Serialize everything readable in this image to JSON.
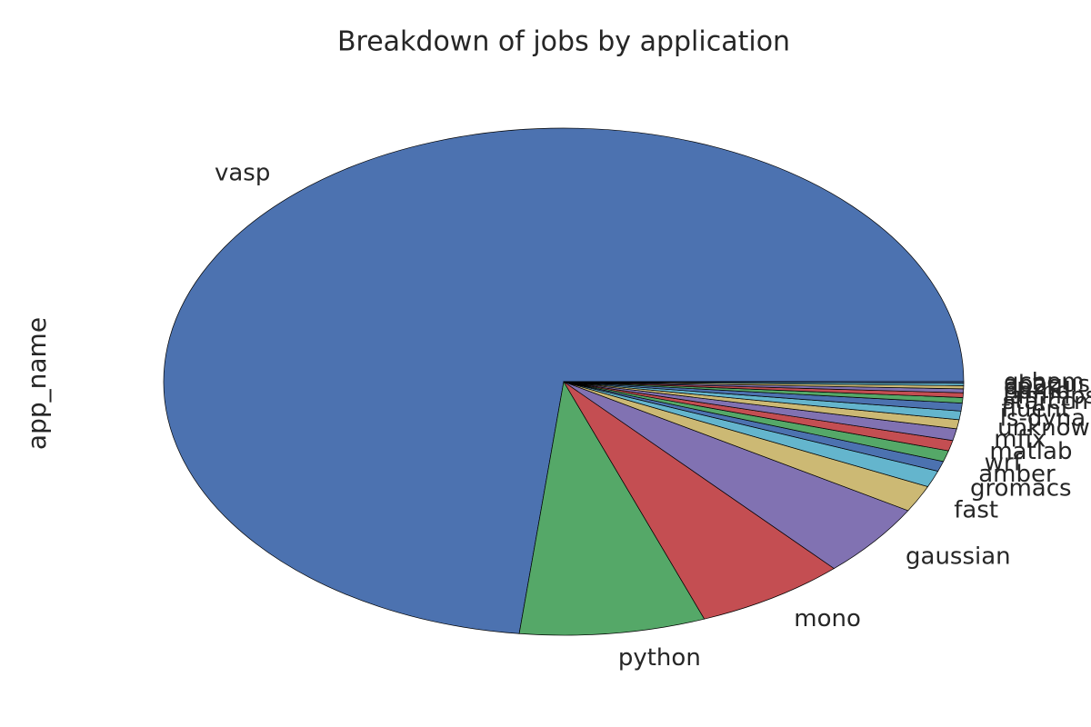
{
  "chart_data": {
    "type": "pie",
    "title": "Breakdown of jobs by application",
    "ylabel": "app_name",
    "categories": [
      "vasp",
      "python",
      "mono",
      "gaussian",
      "fast",
      "gromacs",
      "amber",
      "wrf",
      "matlab",
      "mfix",
      "unknown",
      "ls-dyna",
      "fluent",
      "starccm",
      "lammps",
      "namd",
      "cp2k",
      "abaqus",
      "qchem"
    ],
    "values": [
      73.3,
      7.5,
      6.1,
      4.7,
      1.7,
      1.05,
      0.65,
      0.7,
      0.67,
      0.75,
      0.58,
      0.55,
      0.5,
      0.35,
      0.3,
      0.25,
      0.2,
      0.15,
      0.1
    ],
    "colors": [
      "#4c72b0",
      "#55a868",
      "#c44e52",
      "#8172b2",
      "#ccb974",
      "#64b5cd"
    ],
    "start_angle": 0
  }
}
